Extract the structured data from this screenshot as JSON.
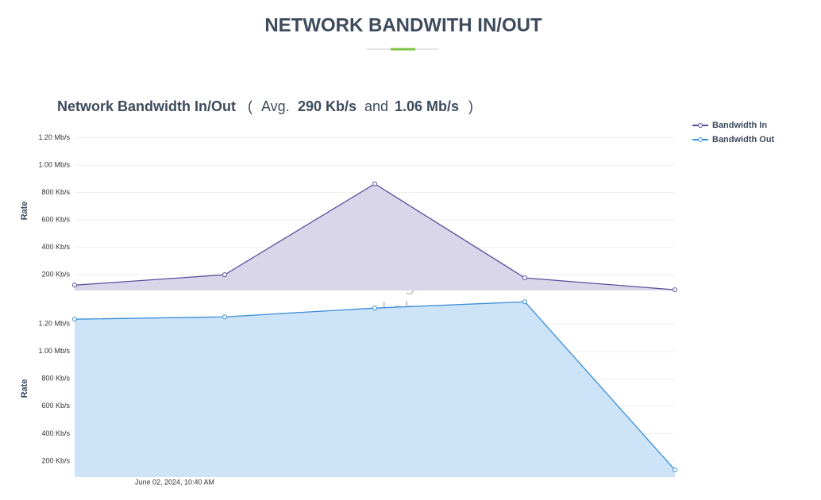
{
  "header": {
    "title": "NETWORK BANDWITH IN/OUT"
  },
  "summary": {
    "title": "Network Bandwidth In/Out",
    "open": "(",
    "avg_label": "Avg.",
    "avg_in": "290 Kb/s",
    "and": "and",
    "avg_out": "1.06 Mb/s",
    "close": ")"
  },
  "watermark": [
    "Miga",
    "Labs"
  ],
  "chart_data": [
    {
      "type": "area",
      "ylabel": "Rate",
      "grid": true,
      "series": [
        {
          "name": "Bandwidth In",
          "color": "#5b4f9e",
          "fill": "#d9d6e9",
          "values": [
            124,
            200,
            864,
            177,
            90
          ]
        }
      ],
      "ylim": [
        85,
        1250
      ],
      "yticks": [
        {
          "value": 200,
          "label": "200 Kb/s"
        },
        {
          "value": 400,
          "label": "400 Kb/s"
        },
        {
          "value": 600,
          "label": "600 Kb/s"
        },
        {
          "value": 800,
          "label": "800 Kb/s"
        },
        {
          "value": 1000,
          "label": "1.00 Mb/s"
        },
        {
          "value": 1200,
          "label": "1.20 Mb/s"
        }
      ]
    },
    {
      "type": "area",
      "ylabel": "Rate",
      "grid": true,
      "x_tick_label": "June 02, 2024, 10:40 AM",
      "series": [
        {
          "name": "Bandwidth Out",
          "color": "#3a8fd9",
          "fill": "#cde3f7",
          "values": [
            1235,
            1252,
            1316,
            1362,
            136
          ]
        }
      ],
      "ylim": [
        84,
        1375
      ],
      "yticks": [
        {
          "value": 200,
          "label": "200 Kb/s"
        },
        {
          "value": 400,
          "label": "400 Kb/s"
        },
        {
          "value": 600,
          "label": "600 Kb/s"
        },
        {
          "value": 800,
          "label": "800 Kb/s"
        },
        {
          "value": 1000,
          "label": "1.00 Mb/s"
        },
        {
          "value": 1200,
          "label": "1.20 Mb/s"
        }
      ]
    }
  ]
}
